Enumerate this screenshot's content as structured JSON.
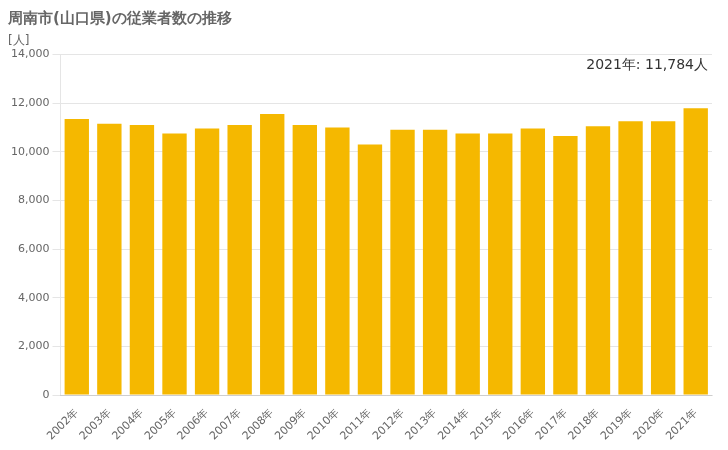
{
  "chart_data": {
    "type": "bar",
    "title": "周南市(山口県)の従業者数の推移",
    "y_label": "[人]",
    "annotation": "2021年: 11,784人",
    "categories": [
      "2002年",
      "2003年",
      "2004年",
      "2005年",
      "2006年",
      "2007年",
      "2008年",
      "2009年",
      "2010年",
      "2011年",
      "2012年",
      "2013年",
      "2014年",
      "2015年",
      "2016年",
      "2017年",
      "2018年",
      "2019年",
      "2020年",
      "2021年"
    ],
    "values": [
      11350,
      11150,
      11100,
      10750,
      10950,
      11100,
      11550,
      11100,
      11000,
      10300,
      10900,
      10900,
      10750,
      10750,
      10950,
      10650,
      11050,
      11250,
      11250,
      11784
    ],
    "color": "#F5B800",
    "ylim": [
      0,
      14000
    ],
    "yticks": [
      0,
      {
        "value": 2000,
        "label": "2,000"
      },
      {
        "value": 4000,
        "label": "4,000"
      },
      {
        "value": 6000,
        "label": "6,000"
      },
      {
        "value": 8000,
        "label": "8,000"
      },
      {
        "value": 10000,
        "label": "10,000"
      },
      {
        "value": 12000,
        "label": "12,000"
      },
      {
        "value": 14000,
        "label": "14,000"
      }
    ],
    "grid": true
  }
}
